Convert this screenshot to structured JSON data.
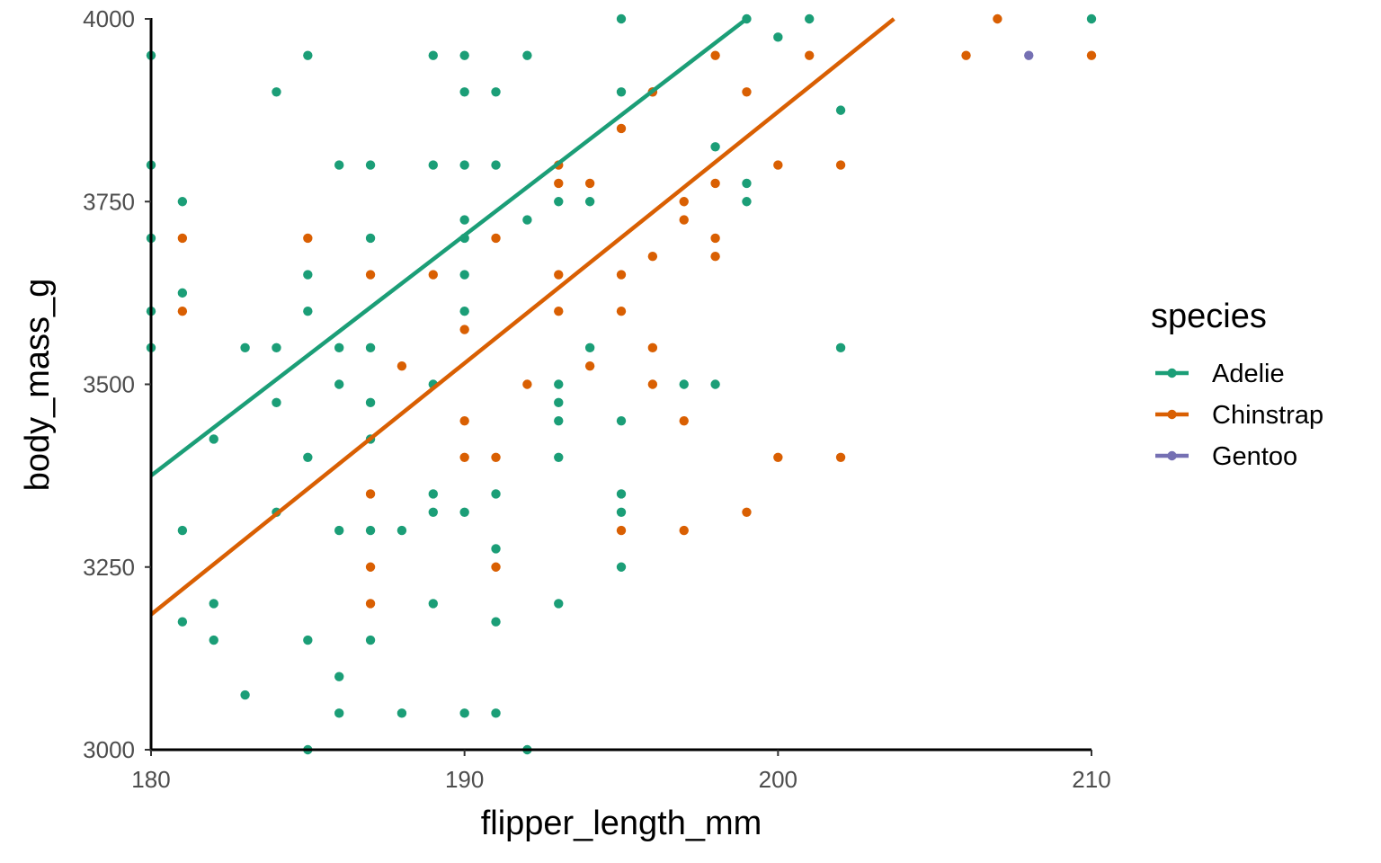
{
  "chart_data": {
    "type": "scatter",
    "xlabel": "flipper_length_mm",
    "ylabel": "body_mass_g",
    "xlim": [
      180,
      210
    ],
    "ylim": [
      3000,
      4000
    ],
    "x_ticks": [
      "180",
      "190",
      "200",
      "210"
    ],
    "y_ticks": [
      "3000",
      "3250",
      "3500",
      "3750",
      "4000"
    ],
    "grid": false,
    "legend": {
      "title": "species",
      "placement": "right"
    },
    "series": [
      {
        "name": "Adelie",
        "color": "#1b9e77",
        "fit_line": {
          "x": [
            180,
            199
          ],
          "y": [
            3375,
            4000
          ]
        },
        "points": [
          [
            180,
            3950
          ],
          [
            180,
            3800
          ],
          [
            180,
            3700
          ],
          [
            180,
            3600
          ],
          [
            180,
            3550
          ],
          [
            181,
            3750
          ],
          [
            181,
            3625
          ],
          [
            181,
            3300
          ],
          [
            181,
            3175
          ],
          [
            182,
            3425
          ],
          [
            182,
            3200
          ],
          [
            182,
            3150
          ],
          [
            183,
            3550
          ],
          [
            183,
            3075
          ],
          [
            184,
            3900
          ],
          [
            184,
            3550
          ],
          [
            184,
            3475
          ],
          [
            184,
            3325
          ],
          [
            185,
            3950
          ],
          [
            185,
            3650
          ],
          [
            185,
            3600
          ],
          [
            185,
            3400
          ],
          [
            185,
            3150
          ],
          [
            185,
            3000
          ],
          [
            186,
            3800
          ],
          [
            186,
            3550
          ],
          [
            186,
            3500
          ],
          [
            186,
            3300
          ],
          [
            186,
            3100
          ],
          [
            186,
            3050
          ],
          [
            187,
            3800
          ],
          [
            187,
            3700
          ],
          [
            187,
            3550
          ],
          [
            187,
            3475
          ],
          [
            187,
            3425
          ],
          [
            187,
            3300
          ],
          [
            187,
            3150
          ],
          [
            188,
            3300
          ],
          [
            188,
            3050
          ],
          [
            189,
            3950
          ],
          [
            189,
            3800
          ],
          [
            189,
            3500
          ],
          [
            189,
            3350
          ],
          [
            189,
            3325
          ],
          [
            189,
            3200
          ],
          [
            190,
            3950
          ],
          [
            190,
            3900
          ],
          [
            190,
            3800
          ],
          [
            190,
            3725
          ],
          [
            190,
            3700
          ],
          [
            190,
            3650
          ],
          [
            190,
            3600
          ],
          [
            190,
            3325
          ],
          [
            190,
            3050
          ],
          [
            191,
            3900
          ],
          [
            191,
            3800
          ],
          [
            191,
            3350
          ],
          [
            191,
            3275
          ],
          [
            191,
            3175
          ],
          [
            191,
            3050
          ],
          [
            192,
            3950
          ],
          [
            192,
            3725
          ],
          [
            192,
            3000
          ],
          [
            193,
            3750
          ],
          [
            193,
            3500
          ],
          [
            193,
            3475
          ],
          [
            193,
            3450
          ],
          [
            193,
            3400
          ],
          [
            193,
            3200
          ],
          [
            194,
            3750
          ],
          [
            194,
            3550
          ],
          [
            195,
            4000
          ],
          [
            195,
            3900
          ],
          [
            195,
            3450
          ],
          [
            195,
            3350
          ],
          [
            195,
            3325
          ],
          [
            195,
            3250
          ],
          [
            196,
            3900
          ],
          [
            197,
            3500
          ],
          [
            198,
            3825
          ],
          [
            198,
            3500
          ],
          [
            199,
            4000
          ],
          [
            199,
            3775
          ],
          [
            199,
            3750
          ],
          [
            200,
            3975
          ],
          [
            201,
            4000
          ],
          [
            202,
            3875
          ],
          [
            202,
            3550
          ],
          [
            210,
            4000
          ]
        ]
      },
      {
        "name": "Chinstrap",
        "color": "#d95f02",
        "fit_line": {
          "x": [
            180,
            203.7
          ],
          "y": [
            3185,
            4000
          ]
        },
        "points": [
          [
            181,
            3700
          ],
          [
            181,
            3600
          ],
          [
            185,
            3700
          ],
          [
            187,
            3650
          ],
          [
            187,
            3350
          ],
          [
            187,
            3250
          ],
          [
            187,
            3200
          ],
          [
            188,
            3525
          ],
          [
            189,
            3650
          ],
          [
            190,
            3575
          ],
          [
            190,
            3450
          ],
          [
            190,
            3400
          ],
          [
            191,
            3700
          ],
          [
            191,
            3400
          ],
          [
            191,
            3250
          ],
          [
            192,
            3500
          ],
          [
            193,
            3800
          ],
          [
            193,
            3775
          ],
          [
            193,
            3650
          ],
          [
            193,
            3600
          ],
          [
            194,
            3775
          ],
          [
            194,
            3525
          ],
          [
            195,
            3850
          ],
          [
            195,
            3650
          ],
          [
            195,
            3600
          ],
          [
            195,
            3300
          ],
          [
            196,
            3900
          ],
          [
            196,
            3675
          ],
          [
            196,
            3550
          ],
          [
            196,
            3500
          ],
          [
            197,
            3750
          ],
          [
            197,
            3725
          ],
          [
            197,
            3450
          ],
          [
            197,
            3300
          ],
          [
            198,
            3950
          ],
          [
            198,
            3775
          ],
          [
            198,
            3700
          ],
          [
            198,
            3675
          ],
          [
            199,
            3900
          ],
          [
            199,
            3325
          ],
          [
            200,
            3800
          ],
          [
            200,
            3400
          ],
          [
            201,
            3950
          ],
          [
            202,
            3800
          ],
          [
            202,
            3400
          ],
          [
            206,
            3950
          ],
          [
            207,
            4000
          ],
          [
            210,
            3950
          ]
        ]
      },
      {
        "name": "Gentoo",
        "color": "#7570b3",
        "points": [
          [
            208,
            3950
          ]
        ]
      }
    ]
  }
}
